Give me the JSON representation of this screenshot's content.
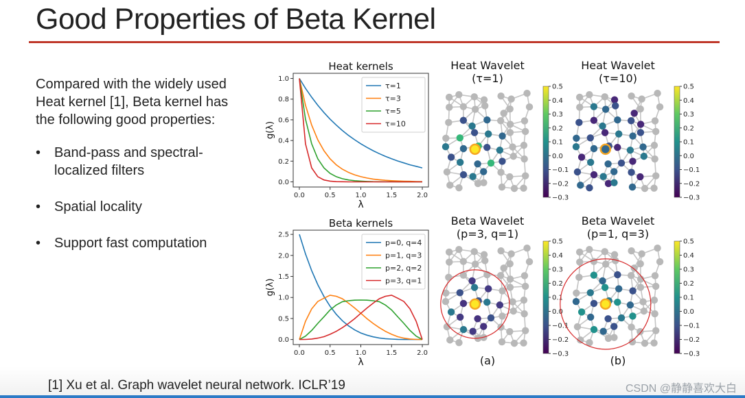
{
  "slide": {
    "title": "Good Properties of Beta Kernel",
    "intro": "Compared with the widely used Heat kernel [1], Beta kernel has the following good properties:",
    "bullets": [
      "Band-pass and spectral-localized filters",
      "Spatial locality",
      "Support fast computation"
    ],
    "bullet_char": "•",
    "reference": "[1] Xu et  al. Graph wavelet neural network. ICLR’19",
    "watermark": "CSDN @静静喜欢大白"
  },
  "chart_data": [
    {
      "type": "line",
      "title": "Heat kernels",
      "xlabel": "λ",
      "ylabel": "g(λ)",
      "xlim": [
        -0.1,
        2.1
      ],
      "ylim": [
        -0.05,
        1.05
      ],
      "xticks": [
        "0.0",
        "0.5",
        "1.0",
        "1.5",
        "2.0"
      ],
      "yticks": [
        "0.0",
        "0.2",
        "0.4",
        "0.6",
        "0.8",
        "1.0"
      ],
      "legend_position": "top-right",
      "x": [
        0,
        0.1,
        0.2,
        0.3,
        0.4,
        0.5,
        0.6,
        0.7,
        0.8,
        0.9,
        1.0,
        1.1,
        1.2,
        1.3,
        1.4,
        1.5,
        1.6,
        1.7,
        1.8,
        1.9,
        2.0
      ],
      "series": [
        {
          "name": "τ=1",
          "color": "#1f77b4",
          "values": [
            1.0,
            0.905,
            0.819,
            0.741,
            0.67,
            0.607,
            0.549,
            0.497,
            0.449,
            0.407,
            0.368,
            0.333,
            0.301,
            0.273,
            0.247,
            0.223,
            0.202,
            0.183,
            0.165,
            0.15,
            0.135
          ]
        },
        {
          "name": "τ=3",
          "color": "#ff7f0e",
          "values": [
            1.0,
            0.741,
            0.549,
            0.407,
            0.301,
            0.223,
            0.165,
            0.122,
            0.091,
            0.067,
            0.05,
            0.037,
            0.027,
            0.02,
            0.015,
            0.011,
            0.008,
            0.006,
            0.005,
            0.003,
            0.002
          ]
        },
        {
          "name": "τ=5",
          "color": "#2ca02c",
          "values": [
            1.0,
            0.607,
            0.368,
            0.223,
            0.135,
            0.082,
            0.05,
            0.03,
            0.018,
            0.011,
            0.007,
            0.004,
            0.002,
            0.001,
            0.001,
            0.001,
            0.0,
            0.0,
            0.0,
            0.0,
            0.0
          ]
        },
        {
          "name": "τ=10",
          "color": "#d62728",
          "values": [
            1.0,
            0.368,
            0.135,
            0.05,
            0.018,
            0.007,
            0.002,
            0.001,
            0.0,
            0.0,
            0.0,
            0.0,
            0.0,
            0.0,
            0.0,
            0.0,
            0.0,
            0.0,
            0.0,
            0.0,
            0.0
          ]
        }
      ]
    },
    {
      "type": "line",
      "title": "Beta kernels",
      "xlabel": "λ",
      "ylabel": "g(λ)",
      "xlim": [
        -0.1,
        2.1
      ],
      "ylim": [
        -0.12,
        2.6
      ],
      "xticks": [
        "0.0",
        "0.5",
        "1.0",
        "1.5",
        "2.0"
      ],
      "yticks": [
        "0.0",
        "0.5",
        "1.0",
        "1.5",
        "2.0",
        "2.5"
      ],
      "legend_position": "top-right",
      "x": [
        0,
        0.1,
        0.2,
        0.3,
        0.4,
        0.5,
        0.6,
        0.7,
        0.8,
        0.9,
        1.0,
        1.1,
        1.2,
        1.3,
        1.4,
        1.5,
        1.6,
        1.7,
        1.8,
        1.9,
        2.0
      ],
      "series": [
        {
          "name": "p=0, q=4",
          "color": "#1f77b4",
          "values": [
            2.5,
            2.036,
            1.638,
            1.305,
            1.024,
            0.791,
            0.6,
            0.446,
            0.324,
            0.228,
            0.156,
            0.103,
            0.064,
            0.037,
            0.02,
            0.01,
            0.004,
            0.001,
            0.0,
            0.0,
            0.0
          ]
        },
        {
          "name": "p=1, q=3",
          "color": "#ff7f0e",
          "values": [
            0.0,
            0.434,
            0.729,
            0.904,
            0.983,
            1.055,
            1.029,
            0.97,
            0.863,
            0.75,
            0.625,
            0.495,
            0.384,
            0.283,
            0.194,
            0.125,
            0.068,
            0.033,
            0.012,
            0.002,
            0.0
          ]
        },
        {
          "name": "p=2, q=2",
          "color": "#2ca02c",
          "values": [
            0.0,
            0.08,
            0.216,
            0.383,
            0.541,
            0.703,
            0.819,
            0.9,
            0.922,
            0.935,
            0.938,
            0.935,
            0.922,
            0.9,
            0.819,
            0.703,
            0.541,
            0.383,
            0.216,
            0.08,
            0.0
          ]
        },
        {
          "name": "p=3, q=1",
          "color": "#d62728",
          "values": [
            0.0,
            0.002,
            0.012,
            0.033,
            0.068,
            0.125,
            0.194,
            0.283,
            0.384,
            0.495,
            0.625,
            0.75,
            0.863,
            0.97,
            1.029,
            1.055,
            0.983,
            0.904,
            0.729,
            0.434,
            0.0
          ]
        }
      ]
    }
  ],
  "wavelets": [
    {
      "title_line1": "Heat Wavelet",
      "title_line2": "(τ=1)",
      "caption": ""
    },
    {
      "title_line1": "Heat Wavelet",
      "title_line2": "(τ=10)",
      "caption": ""
    },
    {
      "title_line1": "Beta Wavelet",
      "title_line2": "(p=3, q=1)",
      "caption": "(a)"
    },
    {
      "title_line1": "Beta Wavelet",
      "title_line2": "(p=1, q=3)",
      "caption": "(b)"
    }
  ],
  "colorbar": {
    "ticks": [
      "0.5",
      "0.4",
      "0.3",
      "0.2",
      "0.1",
      "0.0",
      "−0.1",
      "−0.2",
      "−0.3"
    ],
    "colors": [
      "#fde725",
      "#5ec962",
      "#21918c",
      "#3b528b",
      "#440154"
    ],
    "node_gray": "#b8b8b8",
    "highlight": "#f5a623",
    "circle": "#d62728"
  }
}
